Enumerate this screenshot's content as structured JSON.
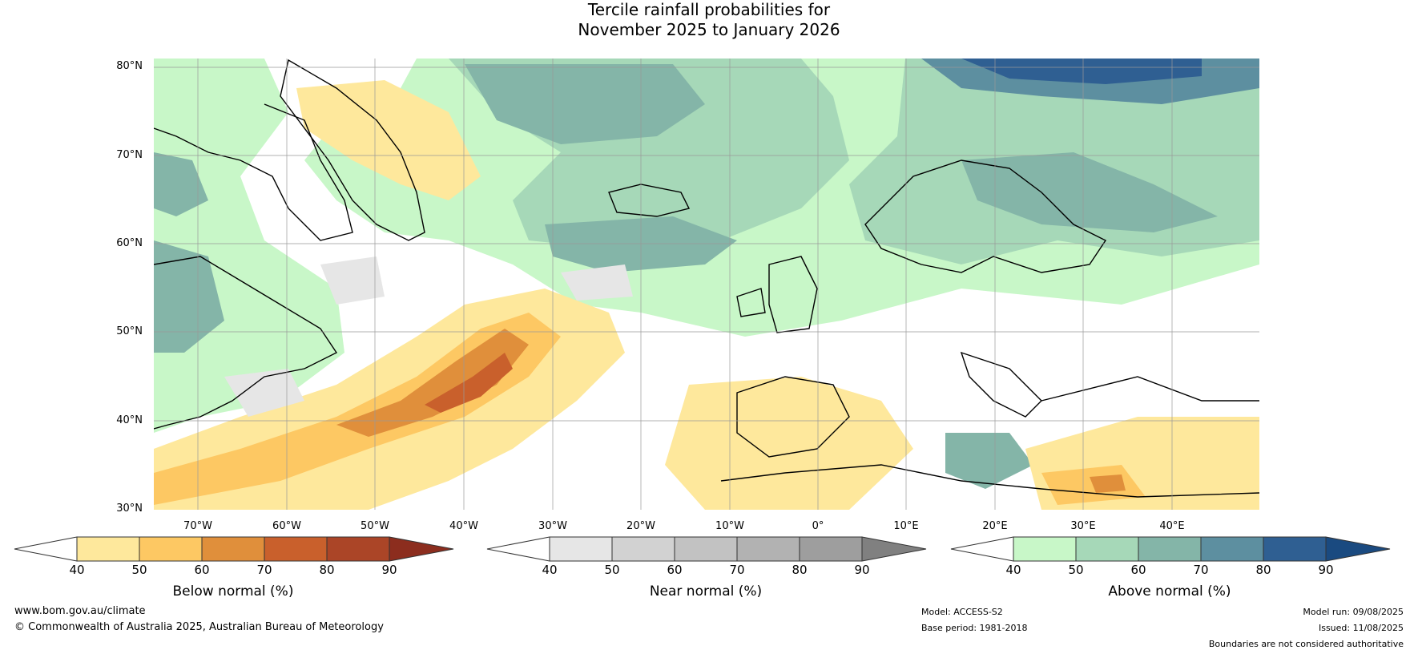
{
  "title_line1": "Tercile rainfall probabilities for",
  "title_line2": "November 2025 to January 2026",
  "lat_labels": [
    "80°N",
    "70°N",
    "60°N",
    "50°N",
    "40°N",
    "30°N"
  ],
  "lon_labels": [
    "70°W",
    "60°W",
    "50°W",
    "40°W",
    "30°W",
    "20°W",
    "10°W",
    "0°",
    "10°E",
    "20°E",
    "30°E",
    "40°E"
  ],
  "colorbars": [
    {
      "label": "Below normal (%)",
      "ticks": [
        "40",
        "50",
        "60",
        "70",
        "80",
        "90"
      ],
      "colors": [
        "#ffffff",
        "#fee89c",
        "#fdc863",
        "#e08f3b",
        "#c9602c",
        "#ab4527",
        "#8c2d1e"
      ]
    },
    {
      "label": "Near normal (%)",
      "ticks": [
        "40",
        "50",
        "60",
        "70",
        "80",
        "90"
      ],
      "colors": [
        "#ffffff",
        "#e6e6e6",
        "#d2d2d2",
        "#c2c2c2",
        "#b2b2b2",
        "#9e9e9e",
        "#808080"
      ]
    },
    {
      "label": "Above normal (%)",
      "ticks": [
        "40",
        "50",
        "60",
        "70",
        "80",
        "90"
      ],
      "colors": [
        "#ffffff",
        "#c8f7c8",
        "#a6d8b8",
        "#84b5a8",
        "#5d8fa0",
        "#2f5f92",
        "#1a4a80"
      ]
    }
  ],
  "footer": {
    "website": "www.bom.gov.au/climate",
    "copyright": "© Commonwealth of Australia 2025, Australian Bureau of Meteorology",
    "model": "Model: ACCESS-S2",
    "base_period": "Base period: 1981-2018",
    "model_run": "Model run: 09/08/2025",
    "issued": "Issued: 11/08/2025",
    "disclaimer": "Boundaries are not considered authoritative"
  }
}
